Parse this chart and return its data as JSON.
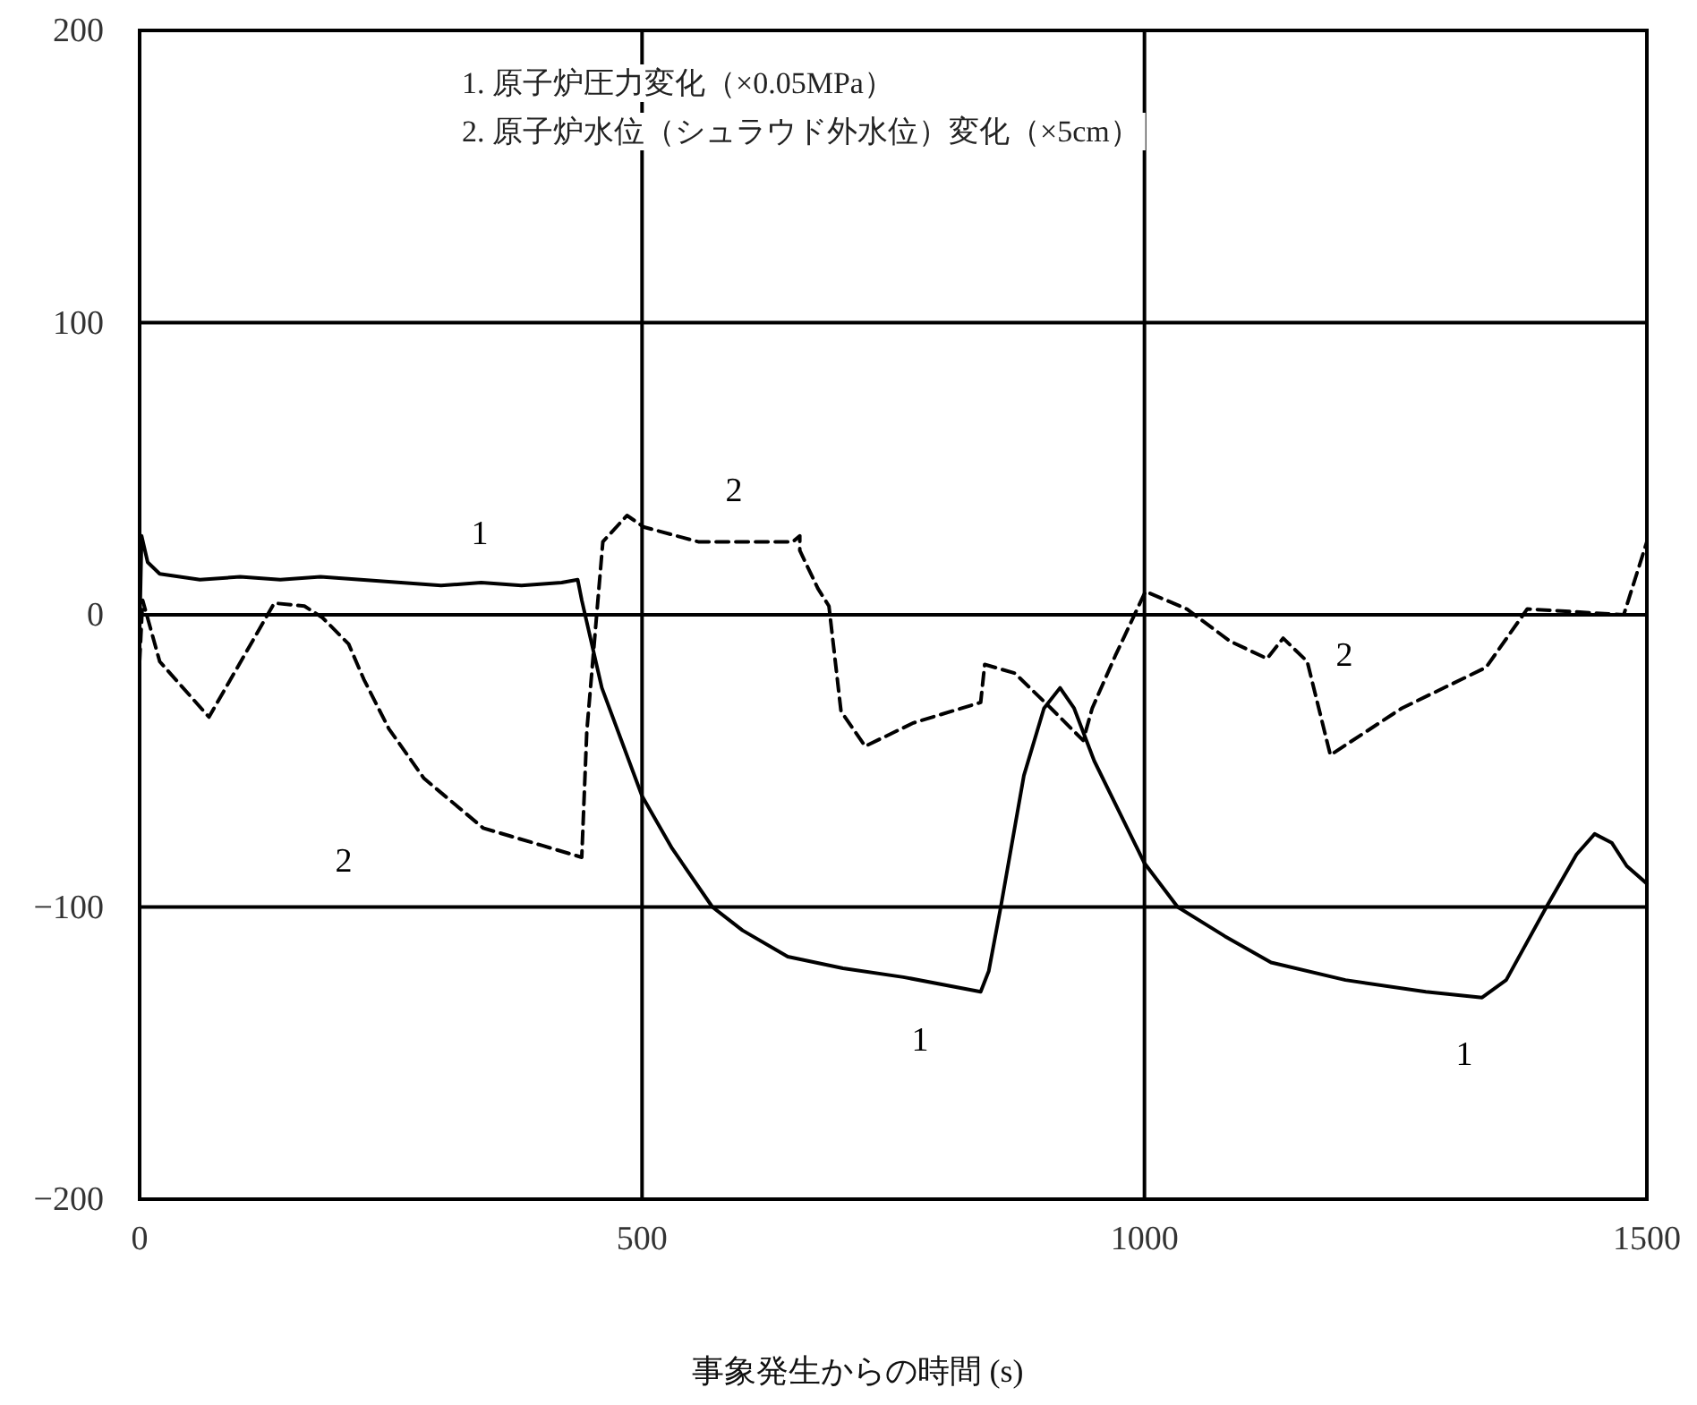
{
  "chart_data": {
    "type": "line",
    "xlabel": "事象発生からの時間 (s)",
    "xlim": [
      0,
      1500
    ],
    "xticks": [
      0,
      500,
      1000,
      1500
    ],
    "ylim": [
      -200,
      200
    ],
    "yticks": [
      200,
      100,
      0,
      {
        "value": -100,
        "label": "−100"
      },
      {
        "value": -200,
        "label": "−200"
      }
    ],
    "grid": true,
    "series": [
      {
        "name": "1",
        "color": "#000000",
        "line_style": "solid",
        "x": [
          0,
          2,
          8,
          20,
          60,
          100,
          140,
          180,
          220,
          260,
          300,
          340,
          380,
          420,
          436,
          440,
          460,
          500,
          530,
          570,
          600,
          645,
          700,
          760,
          837,
          845,
          857,
          880,
          900,
          916,
          930,
          950,
          1000,
          1033,
          1080,
          1126,
          1200,
          1280,
          1336,
          1360,
          1400,
          1430,
          1448,
          1465,
          1480,
          1500
        ],
        "values": [
          -5,
          27,
          18,
          14,
          12,
          13,
          12,
          13,
          12,
          11,
          10,
          11,
          10,
          11,
          12,
          5,
          -25,
          -62,
          -80,
          -100,
          -108,
          -117,
          -121,
          -124,
          -129,
          -122,
          -100,
          -55,
          -32,
          -25,
          -32,
          -50,
          -85,
          -100,
          -110,
          -119,
          -125,
          -129,
          -131,
          -125,
          -100,
          -82,
          -75,
          -78,
          -86,
          -92
        ]
      },
      {
        "name": "2",
        "color": "#000000",
        "line_style": "dashed",
        "x": [
          0,
          3,
          20,
          69,
          134,
          164,
          182,
          208,
          223,
          248,
          283,
          342,
          401,
          440,
          445,
          461,
          485,
          502,
          556,
          650,
          657,
          657,
          675,
          686,
          698,
          722,
          770,
          837,
          841,
          871,
          907,
          939,
          948,
          971,
          1001,
          1042,
          1085,
          1122,
          1138,
          1162,
          1185,
          1256,
          1340,
          1381,
          1477,
          1500
        ],
        "values": [
          -16,
          5,
          -16,
          -35,
          4,
          3,
          -1,
          -10,
          -22,
          -39,
          -56,
          -73,
          -79,
          -83,
          -40,
          25,
          34,
          30,
          25,
          25,
          27,
          22,
          9,
          3,
          -33,
          -45,
          -37,
          -30,
          -17,
          -20,
          -32,
          -43,
          -32,
          -14,
          8,
          2,
          -9,
          -15,
          -8,
          -16,
          -48,
          -32,
          -18,
          2,
          0,
          25
        ]
      }
    ],
    "annotations": [
      "1. 原子炉圧力変化（×0.05MPa）",
      "2. 原子炉水位（シュラウド外水位）変化（×5cm）"
    ]
  }
}
